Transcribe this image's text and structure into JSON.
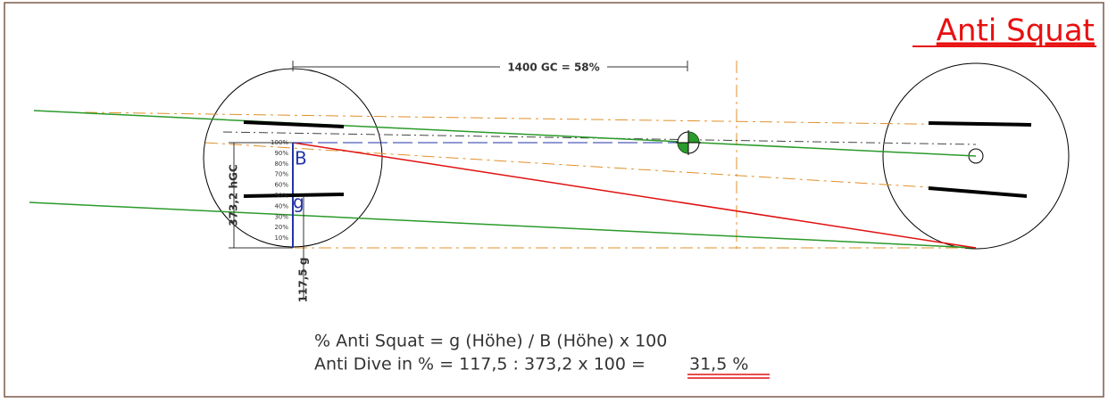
{
  "header": {
    "title": "Anti Squat"
  },
  "dimensions": {
    "wheelbase": "1400 GC = 58%",
    "cg_height": "373,2 hGC",
    "g_height": "117,5 g"
  },
  "points": {
    "b": "B",
    "g": "g"
  },
  "scale": [
    "100%",
    "90%",
    "80%",
    "70%",
    "60%",
    "50%",
    "40%",
    "30%",
    "20%",
    "10%"
  ],
  "formula": {
    "line1": "% Anti Squat = g (Höhe) / B (Höhe) x 100",
    "line2": "Anti Dive in % = 117,5 : 373,2 x 100 =",
    "result": "31,5 %"
  }
}
